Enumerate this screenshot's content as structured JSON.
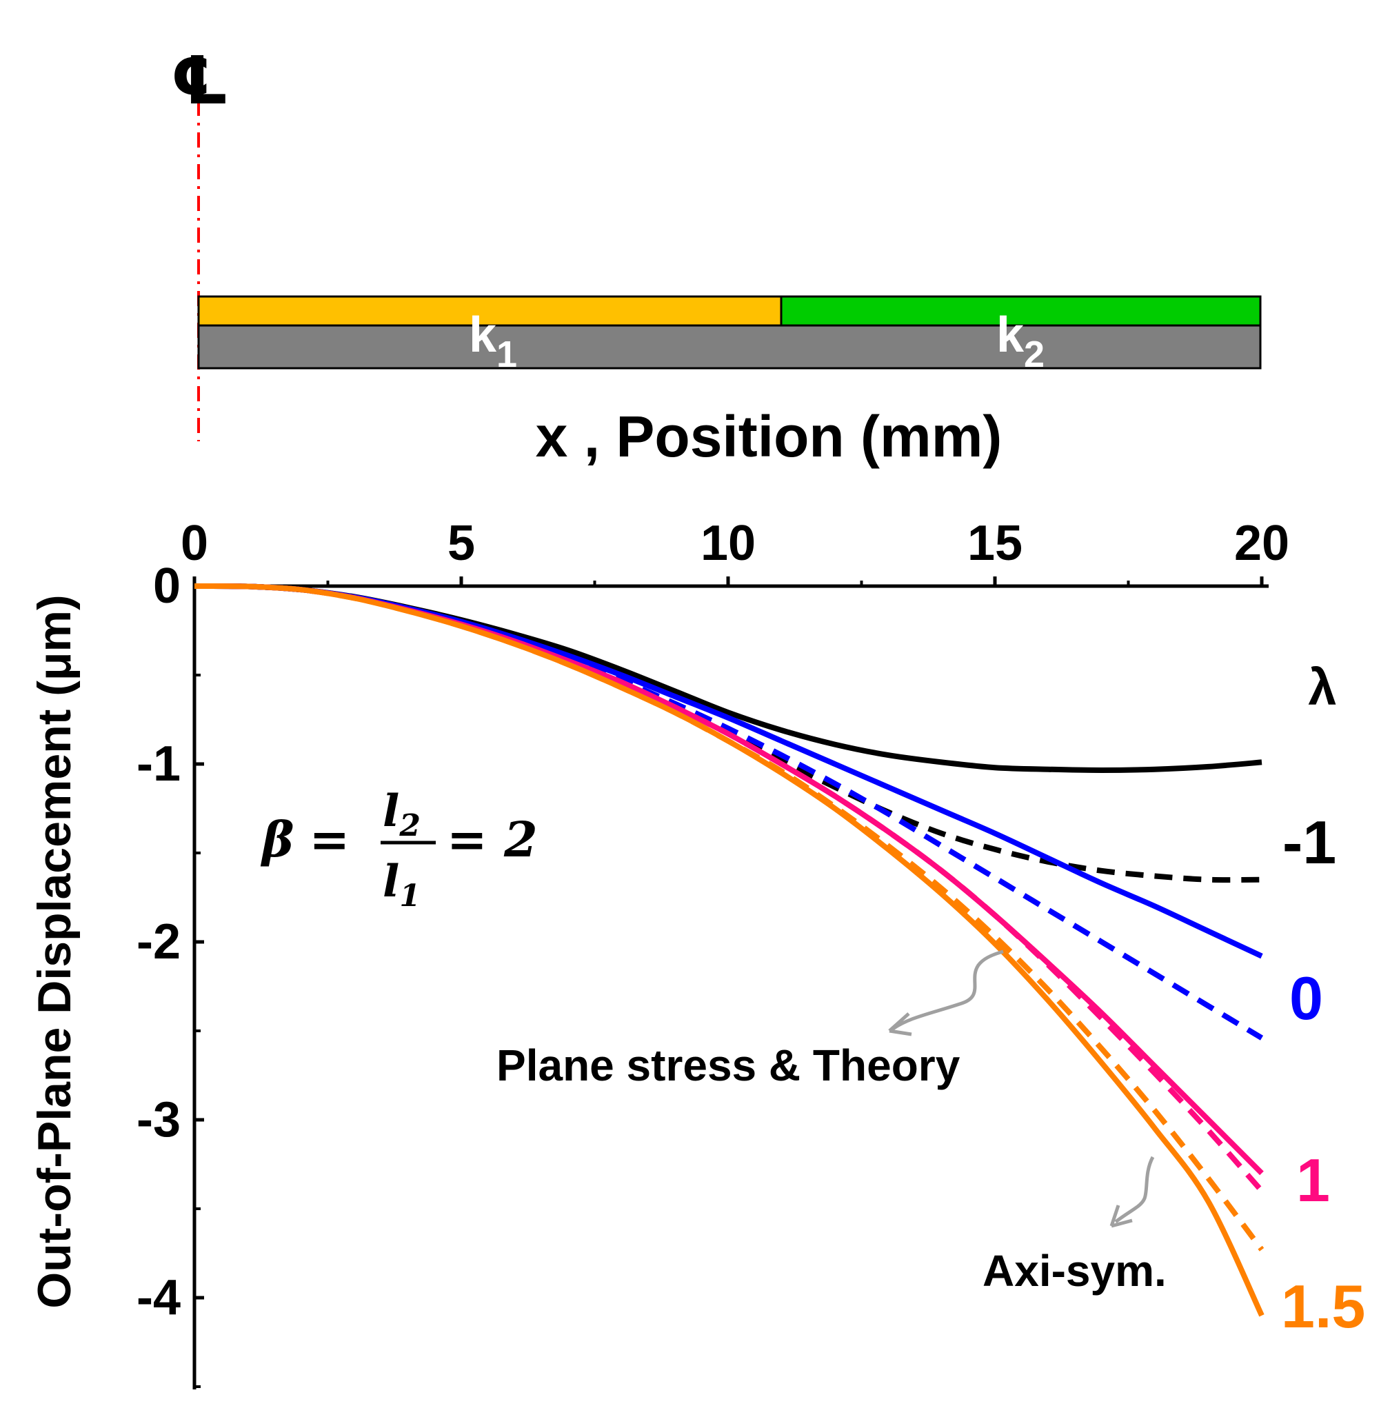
{
  "chart_data": {
    "type": "line",
    "title": "",
    "xlabel": "x , Position (mm)",
    "ylabel": "Out-of-Plane Displacement (μm)",
    "xlim": [
      0,
      20
    ],
    "ylim": [
      -4.5,
      0
    ],
    "xticks": [
      0,
      5,
      10,
      15,
      20
    ],
    "yticks": [
      0,
      -1,
      -2,
      -3,
      -4
    ],
    "xtick_labels": [
      "0",
      "5",
      "10",
      "15",
      "20"
    ],
    "ytick_labels": [
      "0",
      "-1",
      "-2",
      "-3",
      "-4"
    ],
    "legend_title": "λ",
    "beta_equation": {
      "lhs": "β",
      "eq": "=",
      "num": "l",
      "num_sub": "2",
      "den": "l",
      "den_sub": "1",
      "rhs": "= 2"
    },
    "x": [
      0,
      1,
      2,
      3,
      4,
      5,
      6,
      7,
      8,
      9,
      10,
      11,
      12,
      13,
      14,
      15,
      16,
      17,
      18,
      19,
      20
    ],
    "series": [
      {
        "name": "λ = -1 plane stress & theory",
        "lambda": "-1",
        "model": "plane stress & theory",
        "style": "solid",
        "color": "#000000",
        "values": [
          0,
          -0.002,
          -0.02,
          -0.06,
          -0.12,
          -0.19,
          -0.27,
          -0.36,
          -0.47,
          -0.59,
          -0.71,
          -0.81,
          -0.89,
          -0.95,
          -0.99,
          -1.02,
          -1.03,
          -1.035,
          -1.03,
          -1.015,
          -0.99
        ]
      },
      {
        "name": "λ = -1 axi-sym.",
        "lambda": "-1",
        "model": "axi-sym.",
        "style": "dashed",
        "color": "#000000",
        "values": [
          0,
          -0.002,
          -0.02,
          -0.065,
          -0.13,
          -0.21,
          -0.3,
          -0.41,
          -0.53,
          -0.67,
          -0.82,
          -0.98,
          -1.13,
          -1.27,
          -1.39,
          -1.48,
          -1.55,
          -1.6,
          -1.63,
          -1.65,
          -1.65
        ]
      },
      {
        "name": "λ = 0 plane stress & theory",
        "lambda": "0",
        "model": "plane stress & theory",
        "style": "solid",
        "color": "#0000ff",
        "values": [
          0,
          -0.002,
          -0.02,
          -0.062,
          -0.125,
          -0.2,
          -0.29,
          -0.39,
          -0.5,
          -0.62,
          -0.74,
          -0.87,
          -1.0,
          -1.13,
          -1.26,
          -1.39,
          -1.53,
          -1.67,
          -1.8,
          -1.94,
          -2.08
        ]
      },
      {
        "name": "λ = 0 axi-sym.",
        "lambda": "0",
        "model": "axi-sym.",
        "style": "dashed",
        "color": "#0000ff",
        "values": [
          0,
          -0.002,
          -0.02,
          -0.065,
          -0.13,
          -0.21,
          -0.3,
          -0.41,
          -0.53,
          -0.66,
          -0.8,
          -0.95,
          -1.11,
          -1.28,
          -1.46,
          -1.64,
          -1.82,
          -2.0,
          -2.18,
          -2.36,
          -2.54
        ]
      },
      {
        "name": "λ = 1 plane stress & theory",
        "lambda": "1",
        "model": "plane stress & theory",
        "style": "solid",
        "color": "#ff0a80",
        "values": [
          0,
          -0.002,
          -0.02,
          -0.066,
          -0.135,
          -0.215,
          -0.31,
          -0.42,
          -0.54,
          -0.68,
          -0.83,
          -1.0,
          -1.18,
          -1.38,
          -1.6,
          -1.85,
          -2.12,
          -2.4,
          -2.7,
          -3.0,
          -3.3
        ]
      },
      {
        "name": "λ = 1 axi-sym.",
        "lambda": "1",
        "model": "axi-sym.",
        "style": "dashed",
        "color": "#ff0a80",
        "values": [
          0,
          -0.002,
          -0.02,
          -0.066,
          -0.135,
          -0.215,
          -0.31,
          -0.42,
          -0.54,
          -0.68,
          -0.83,
          -1.0,
          -1.18,
          -1.38,
          -1.6,
          -1.85,
          -2.13,
          -2.43,
          -2.74,
          -3.06,
          -3.4
        ]
      },
      {
        "name": "λ = 1.5 plane stress & theory",
        "lambda": "1.5",
        "model": "plane stress & theory",
        "style": "solid",
        "color": "#ff8000",
        "values": [
          0,
          -0.002,
          -0.02,
          -0.068,
          -0.14,
          -0.225,
          -0.325,
          -0.44,
          -0.57,
          -0.71,
          -0.87,
          -1.05,
          -1.25,
          -1.48,
          -1.73,
          -2.01,
          -2.33,
          -2.68,
          -3.05,
          -3.46,
          -4.1
        ]
      },
      {
        "name": "λ = 1.5 axi-sym.",
        "lambda": "1.5",
        "model": "axi-sym.",
        "style": "dashed",
        "color": "#ff8000",
        "values": [
          0,
          -0.002,
          -0.02,
          -0.068,
          -0.14,
          -0.225,
          -0.325,
          -0.44,
          -0.57,
          -0.71,
          -0.87,
          -1.04,
          -1.24,
          -1.46,
          -1.7,
          -1.97,
          -2.27,
          -2.6,
          -2.95,
          -3.33,
          -3.73
        ]
      }
    ],
    "end_labels": [
      {
        "text": "-1",
        "color": "#000000"
      },
      {
        "text": "0",
        "color": "#0000ff"
      },
      {
        "text": "1",
        "color": "#ff0a80"
      },
      {
        "text": "1.5",
        "color": "#ff8000"
      }
    ],
    "annotations": [
      {
        "text": "Plane stress & Theory",
        "arrow_color": "#a0a0a0"
      },
      {
        "text": "Axi-sym.",
        "arrow_color": "#a0a0a0"
      }
    ],
    "legend_placement": "right"
  },
  "schematic": {
    "centerline_symbol": "℄",
    "layer1_label": "k",
    "layer1_sub": "1",
    "layer2_label": "k",
    "layer2_sub": "2",
    "layer1_color": "#ffc000",
    "layer2_color": "#00cc00",
    "substrate_color": "#808080",
    "centerline_color": "#ff0000"
  }
}
